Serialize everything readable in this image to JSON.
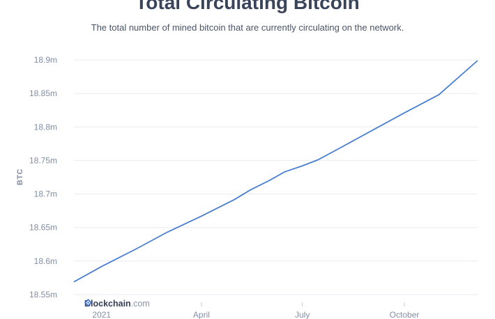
{
  "chart_data": {
    "type": "line",
    "title": "Total Circulating Bitcoin",
    "subtitle": "The total number of mined bitcoin that are currently circulating on the network.",
    "ylabel": "BTC",
    "xlabel": "",
    "ylim": [
      18.55,
      18.9
    ],
    "yticks": [
      {
        "value": 18.55,
        "label": "18.55m"
      },
      {
        "value": 18.6,
        "label": "18.6m"
      },
      {
        "value": 18.65,
        "label": "18.65m"
      },
      {
        "value": 18.7,
        "label": "18.7m"
      },
      {
        "value": 18.75,
        "label": "18.75m"
      },
      {
        "value": 18.8,
        "label": "18.8m"
      },
      {
        "value": 18.85,
        "label": "18.85m"
      },
      {
        "value": 18.9,
        "label": "18.9m"
      }
    ],
    "xlim": [
      "2020-12-07",
      "2021-12-06"
    ],
    "xticks": [
      {
        "date": "2021-01-01",
        "label": "2021"
      },
      {
        "date": "2021-04-01",
        "label": "April"
      },
      {
        "date": "2021-07-01",
        "label": "July"
      },
      {
        "date": "2021-10-01",
        "label": "October"
      }
    ],
    "grid": true,
    "legend": "none",
    "line_color": "#4a7fcf",
    "series": [
      {
        "points": [
          [
            "2020-12-07",
            18.569
          ],
          [
            "2021-01-01",
            18.592
          ],
          [
            "2021-02-01",
            18.618
          ],
          [
            "2021-03-01",
            18.643
          ],
          [
            "2021-04-01",
            18.667
          ],
          [
            "2021-05-01",
            18.692
          ],
          [
            "2021-05-15",
            18.706
          ],
          [
            "2021-06-01",
            18.72
          ],
          [
            "2021-06-15",
            18.733
          ],
          [
            "2021-07-01",
            18.742
          ],
          [
            "2021-07-15",
            18.751
          ],
          [
            "2021-08-01",
            18.766
          ],
          [
            "2021-09-01",
            18.794
          ],
          [
            "2021-10-01",
            18.821
          ],
          [
            "2021-11-01",
            18.848
          ],
          [
            "2021-12-06",
            18.899
          ]
        ]
      }
    ]
  },
  "watermark": {
    "brand": "Blockchain",
    "domain": ".com",
    "icon": "blockchain-logo-icon",
    "color": "#3c6bd3"
  }
}
